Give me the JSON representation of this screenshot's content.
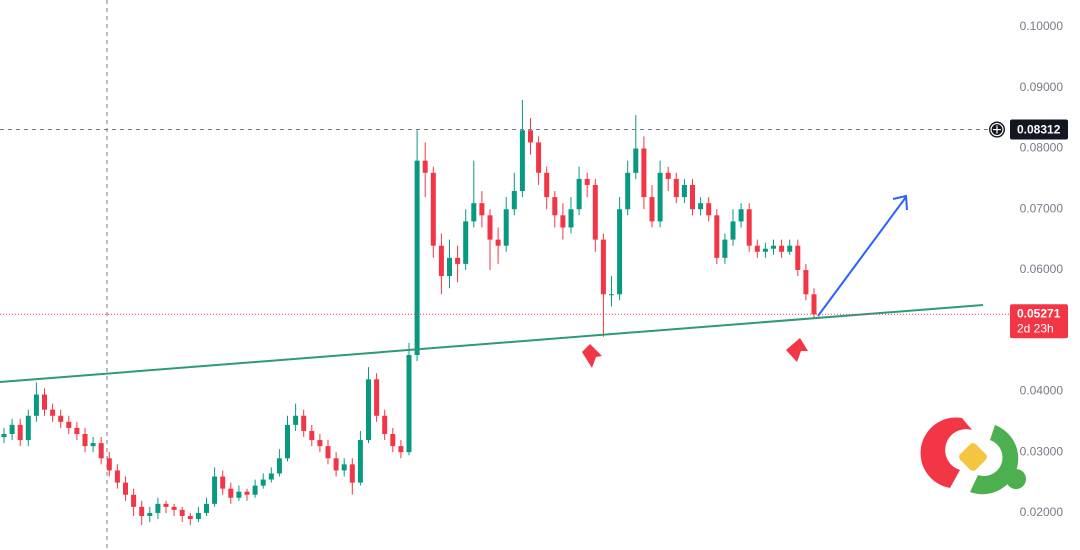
{
  "chart_data": {
    "type": "candlestick",
    "open": [
      0.0325,
      0.033,
      0.0345,
      0.032,
      0.036,
      0.0395,
      0.037,
      0.036,
      0.035,
      0.034,
      0.033,
      0.031,
      0.0315,
      0.029,
      0.027,
      0.025,
      0.023,
      0.021,
      0.0195,
      0.02,
      0.0215,
      0.021,
      0.0205,
      0.0195,
      0.019,
      0.02,
      0.0215,
      0.026,
      0.024,
      0.0225,
      0.0235,
      0.023,
      0.0245,
      0.0255,
      0.0265,
      0.029,
      0.0345,
      0.036,
      0.0335,
      0.032,
      0.031,
      0.029,
      0.027,
      0.028,
      0.025,
      0.032,
      0.042,
      0.036,
      0.033,
      0.031,
      0.03,
      0.046,
      0.078,
      0.076,
      0.064,
      0.059,
      0.062,
      0.061,
      0.068,
      0.071,
      0.069,
      0.065,
      0.064,
      0.07,
      0.073,
      0.083,
      0.081,
      0.076,
      0.072,
      0.069,
      0.067,
      0.07,
      0.075,
      0.074,
      0.065,
      0.056,
      0.056,
      0.07,
      0.076,
      0.08,
      0.072,
      0.068,
      0.076,
      0.075,
      0.072,
      0.074,
      0.07,
      0.071,
      0.069,
      0.062,
      0.065,
      0.068,
      0.07,
      0.064,
      0.063,
      0.0635,
      0.064,
      0.063,
      0.064,
      0.06,
      0.056
    ],
    "high": [
      0.034,
      0.0355,
      0.0355,
      0.037,
      0.0415,
      0.0405,
      0.038,
      0.037,
      0.036,
      0.035,
      0.034,
      0.0325,
      0.0325,
      0.03,
      0.028,
      0.026,
      0.024,
      0.022,
      0.021,
      0.0225,
      0.022,
      0.0215,
      0.021,
      0.02,
      0.021,
      0.0225,
      0.0275,
      0.027,
      0.025,
      0.0245,
      0.024,
      0.0255,
      0.0265,
      0.0275,
      0.0305,
      0.036,
      0.038,
      0.037,
      0.0345,
      0.033,
      0.032,
      0.03,
      0.029,
      0.029,
      0.0335,
      0.044,
      0.043,
      0.037,
      0.034,
      0.032,
      0.048,
      0.083,
      0.081,
      0.077,
      0.066,
      0.065,
      0.064,
      0.07,
      0.078,
      0.073,
      0.07,
      0.067,
      0.072,
      0.076,
      0.088,
      0.085,
      0.082,
      0.077,
      0.073,
      0.071,
      0.072,
      0.077,
      0.076,
      0.075,
      0.066,
      0.059,
      0.072,
      0.078,
      0.0855,
      0.082,
      0.074,
      0.078,
      0.077,
      0.076,
      0.075,
      0.075,
      0.072,
      0.072,
      0.07,
      0.066,
      0.07,
      0.071,
      0.071,
      0.065,
      0.0645,
      0.065,
      0.065,
      0.065,
      0.065,
      0.061,
      0.057
    ],
    "low": [
      0.0315,
      0.032,
      0.031,
      0.031,
      0.035,
      0.036,
      0.035,
      0.034,
      0.033,
      0.032,
      0.03,
      0.03,
      0.028,
      0.026,
      0.024,
      0.022,
      0.0195,
      0.018,
      0.0185,
      0.019,
      0.02,
      0.0195,
      0.0185,
      0.018,
      0.0185,
      0.0195,
      0.021,
      0.023,
      0.0215,
      0.022,
      0.022,
      0.0225,
      0.024,
      0.025,
      0.026,
      0.0285,
      0.0335,
      0.0325,
      0.031,
      0.03,
      0.028,
      0.026,
      0.026,
      0.023,
      0.0245,
      0.0315,
      0.035,
      0.032,
      0.03,
      0.029,
      0.0295,
      0.045,
      0.072,
      0.062,
      0.056,
      0.057,
      0.058,
      0.06,
      0.067,
      0.067,
      0.06,
      0.061,
      0.063,
      0.069,
      0.072,
      0.079,
      0.074,
      0.07,
      0.067,
      0.065,
      0.066,
      0.069,
      0.072,
      0.063,
      0.049,
      0.054,
      0.055,
      0.069,
      0.075,
      0.07,
      0.067,
      0.067,
      0.073,
      0.071,
      0.071,
      0.069,
      0.069,
      0.068,
      0.061,
      0.061,
      0.064,
      0.067,
      0.063,
      0.062,
      0.062,
      0.0625,
      0.062,
      0.0625,
      0.059,
      0.055,
      0.052
    ],
    "close": [
      0.033,
      0.0345,
      0.032,
      0.036,
      0.0395,
      0.037,
      0.036,
      0.035,
      0.034,
      0.033,
      0.031,
      0.0315,
      0.029,
      0.027,
      0.025,
      0.023,
      0.021,
      0.0195,
      0.02,
      0.0215,
      0.021,
      0.0205,
      0.0195,
      0.019,
      0.02,
      0.0215,
      0.026,
      0.024,
      0.0225,
      0.0235,
      0.023,
      0.0245,
      0.0255,
      0.0265,
      0.029,
      0.0345,
      0.036,
      0.0335,
      0.032,
      0.031,
      0.029,
      0.027,
      0.028,
      0.025,
      0.032,
      0.042,
      0.036,
      0.033,
      0.031,
      0.03,
      0.046,
      0.078,
      0.076,
      0.064,
      0.059,
      0.062,
      0.061,
      0.068,
      0.071,
      0.069,
      0.065,
      0.064,
      0.07,
      0.073,
      0.083,
      0.081,
      0.076,
      0.072,
      0.069,
      0.067,
      0.07,
      0.075,
      0.074,
      0.065,
      0.056,
      0.056,
      0.07,
      0.076,
      0.08,
      0.072,
      0.068,
      0.076,
      0.075,
      0.072,
      0.074,
      0.07,
      0.071,
      0.069,
      0.062,
      0.065,
      0.068,
      0.07,
      0.064,
      0.063,
      0.0635,
      0.064,
      0.063,
      0.064,
      0.06,
      0.056,
      0.0527
    ],
    "up_color": "#089981",
    "down_color": "#f23645",
    "ylim": [
      0.0139,
      0.10445
    ],
    "yticks": [
      {
        "value": 0.02,
        "label": "0.02000"
      },
      {
        "value": 0.03,
        "label": "0.03000"
      },
      {
        "value": 0.04,
        "label": "0.04000"
      },
      {
        "value": 0.06,
        "label": "0.06000"
      },
      {
        "value": 0.07,
        "label": "0.07000"
      },
      {
        "value": 0.08,
        "label": "0.08000"
      },
      {
        "value": 0.09,
        "label": "0.09000"
      },
      {
        "value": 0.1,
        "label": "0.10000"
      }
    ],
    "crosshair_price": {
      "value": 0.08312,
      "label": "0.08312"
    },
    "last_price": {
      "value": 0.05271,
      "label": "0.05271"
    },
    "countdown": "2d 23h"
  }
}
